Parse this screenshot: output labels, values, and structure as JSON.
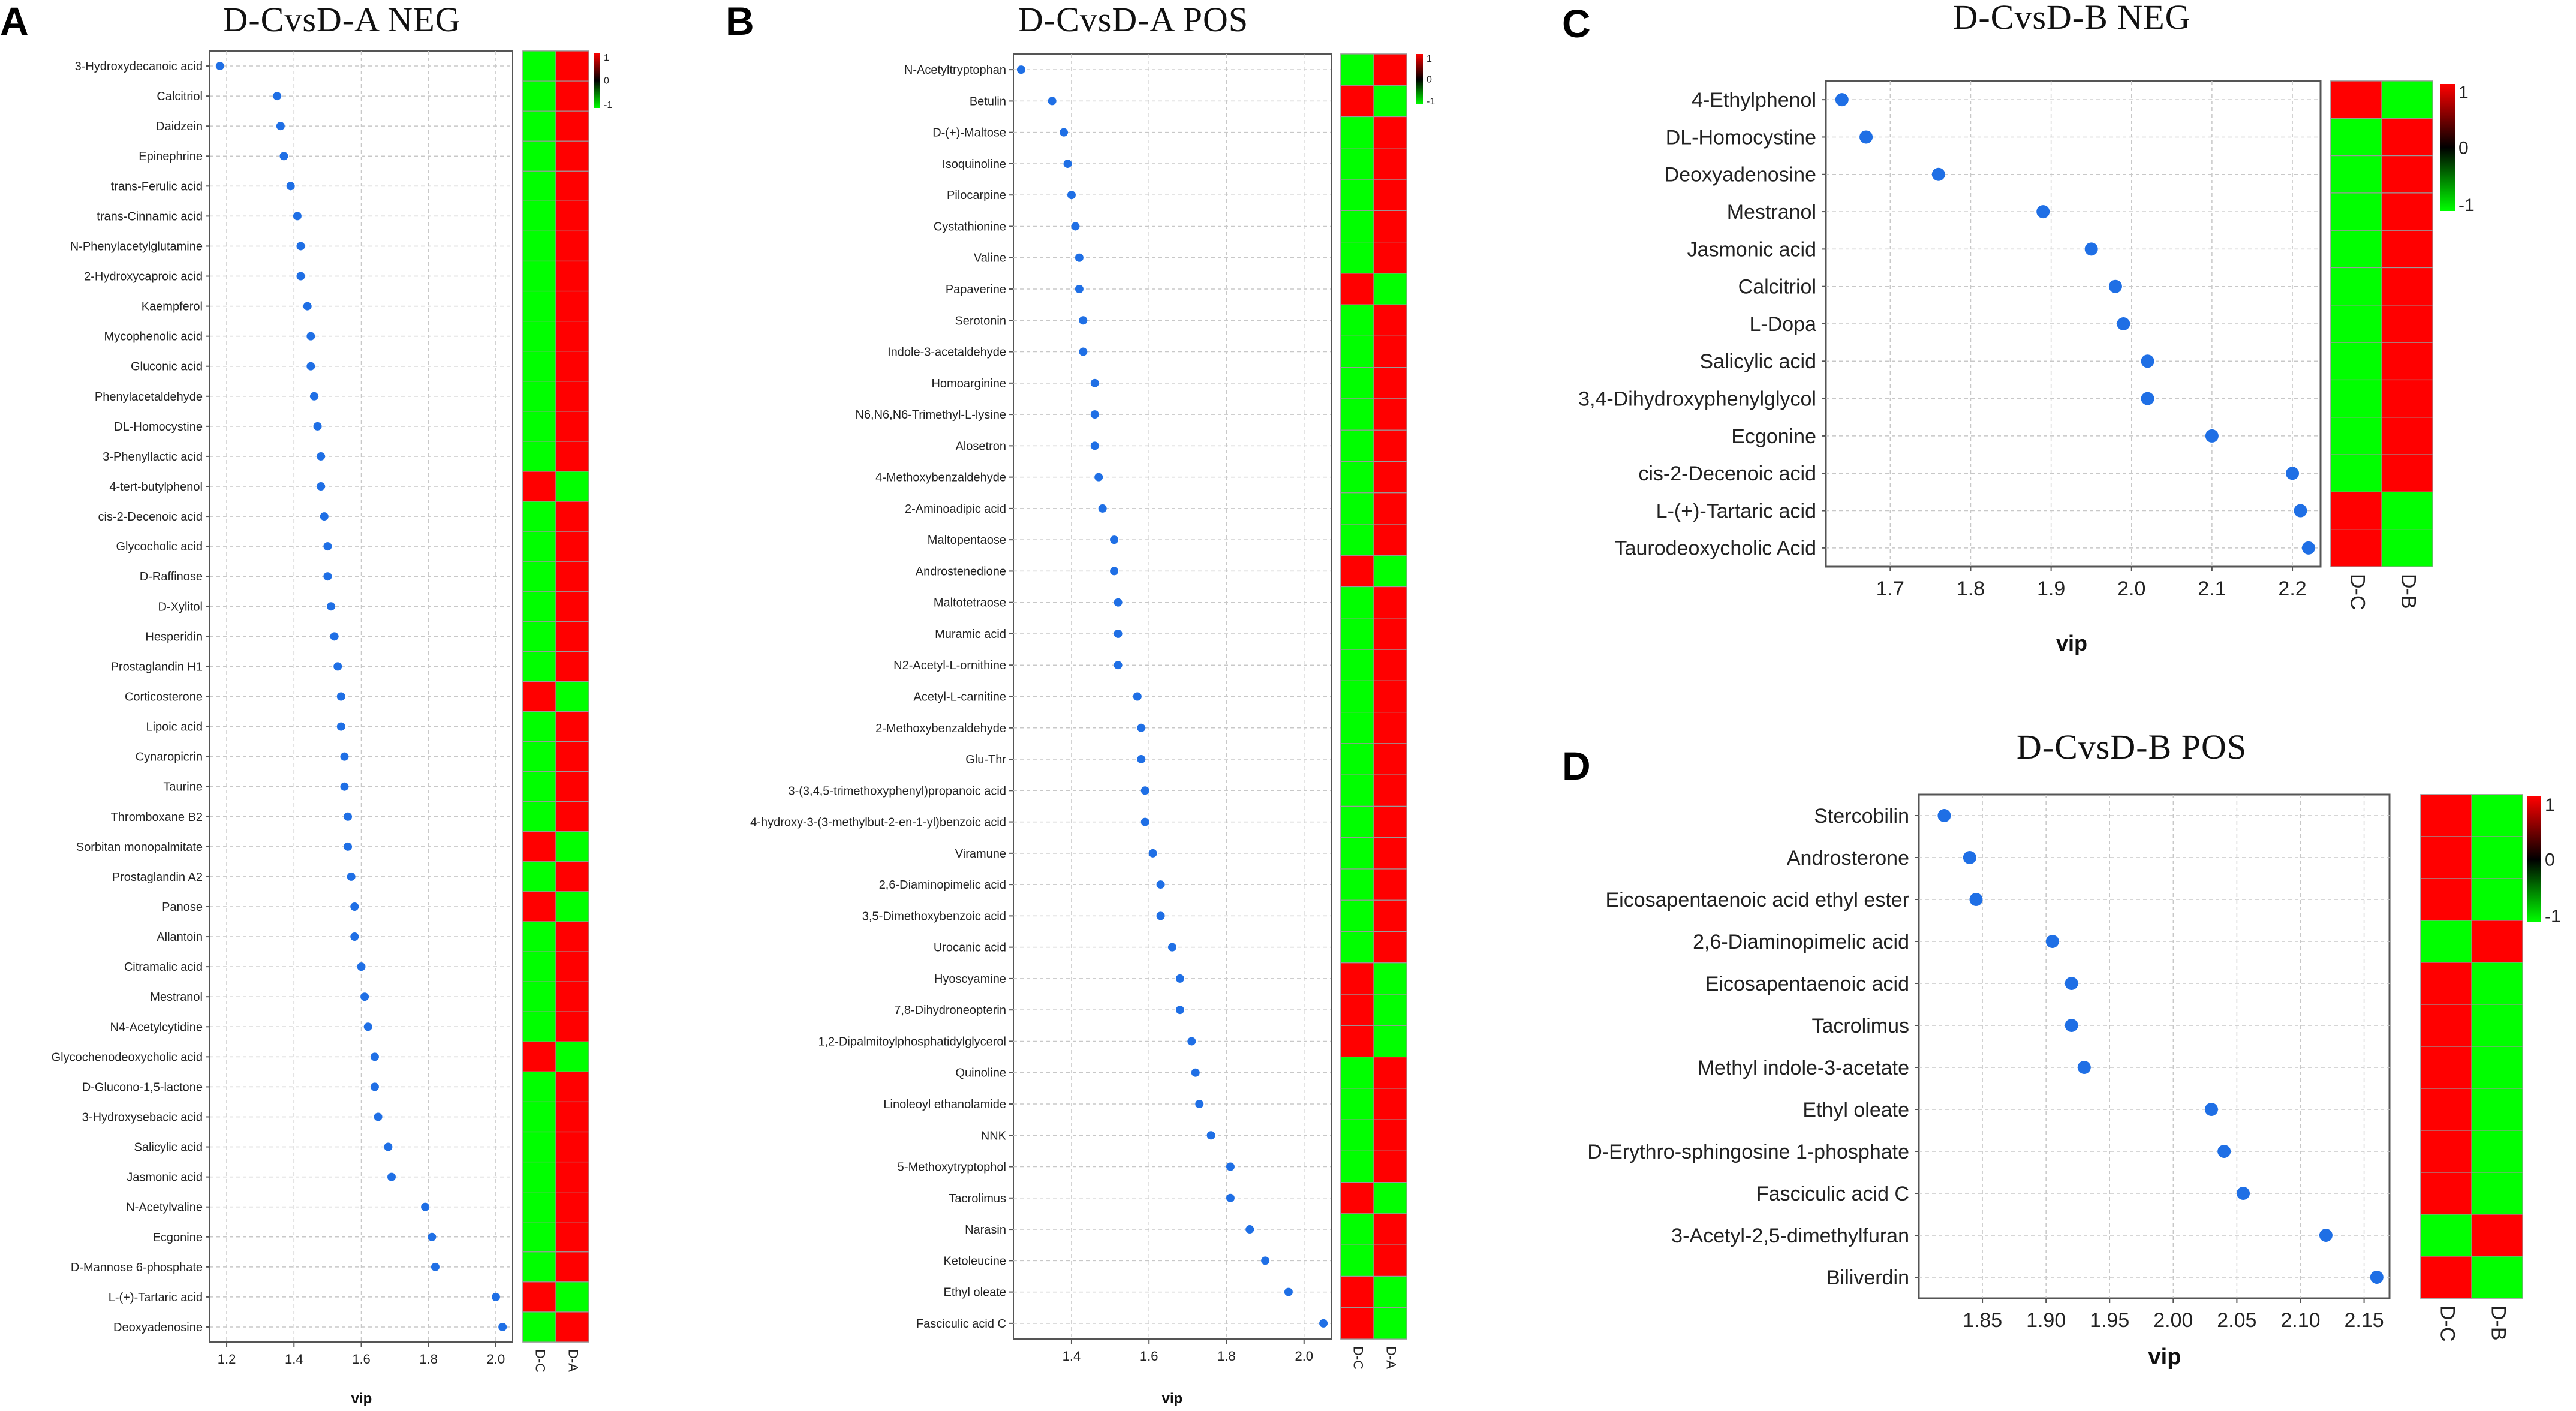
{
  "chart_data": [
    {
      "panel": "A",
      "type": "scatter",
      "title": "D-CvsD-A   NEG",
      "xlabel": "vip",
      "x_ticks": [
        1.2,
        1.4,
        1.6,
        1.8,
        2.0
      ],
      "x_tick_labels": [
        "1.2",
        "1.4",
        "1.6",
        "1.8",
        "2.0"
      ],
      "xlim": [
        1.15,
        2.05
      ],
      "grid": true,
      "categories": [
        "3-Hydroxydecanoic acid",
        "Calcitriol",
        "Daidzein",
        "Epinephrine",
        "trans-Ferulic acid",
        "trans-Cinnamic acid",
        "N-Phenylacetylglutamine",
        "2-Hydroxycaproic acid",
        "Kaempferol",
        "Mycophenolic acid",
        "Gluconic acid",
        "Phenylacetaldehyde",
        "DL-Homocystine",
        "3-Phenyllactic acid",
        "4-tert-butylphenol",
        "cis-2-Decenoic acid",
        "Glycocholic acid",
        "D-Raffinose",
        "D-Xylitol",
        "Hesperidin",
        "Prostaglandin H1",
        "Corticosterone",
        "Lipoic acid",
        "Cynaropicrin",
        "Taurine",
        "Thromboxane B2",
        "Sorbitan monopalmitate",
        "Prostaglandin A2",
        "Panose",
        "Allantoin",
        "Citramalic acid",
        "Mestranol",
        "N4-Acetylcytidine",
        "Glycochenodeoxycholic acid",
        "D-Glucono-1,5-lactone",
        "3-Hydroxysebacic acid",
        "Salicylic acid",
        "Jasmonic acid",
        "N-Acetylvaline",
        "Ecgonine",
        "D-Mannose 6-phosphate",
        "L-(+)-Tartaric acid",
        "Deoxyadenosine"
      ],
      "values": [
        1.18,
        1.35,
        1.36,
        1.37,
        1.39,
        1.41,
        1.42,
        1.42,
        1.44,
        1.45,
        1.45,
        1.46,
        1.47,
        1.48,
        1.48,
        1.49,
        1.5,
        1.5,
        1.51,
        1.52,
        1.53,
        1.54,
        1.54,
        1.55,
        1.55,
        1.56,
        1.56,
        1.57,
        1.58,
        1.58,
        1.6,
        1.61,
        1.62,
        1.64,
        1.64,
        1.65,
        1.68,
        1.69,
        1.79,
        1.81,
        1.82,
        2.0,
        2.02
      ],
      "heatmap_columns": [
        "D-C",
        "D-A"
      ],
      "heatmap": [
        [
          -1,
          1
        ],
        [
          -1,
          1
        ],
        [
          -1,
          1
        ],
        [
          -1,
          1
        ],
        [
          -1,
          1
        ],
        [
          -1,
          1
        ],
        [
          -1,
          1
        ],
        [
          -1,
          1
        ],
        [
          -1,
          1
        ],
        [
          -1,
          1
        ],
        [
          -1,
          1
        ],
        [
          -1,
          1
        ],
        [
          -1,
          1
        ],
        [
          -1,
          1
        ],
        [
          1,
          -1
        ],
        [
          -1,
          1
        ],
        [
          -1,
          1
        ],
        [
          -1,
          1
        ],
        [
          -1,
          1
        ],
        [
          -1,
          1
        ],
        [
          -1,
          1
        ],
        [
          1,
          -1
        ],
        [
          -1,
          1
        ],
        [
          -1,
          1
        ],
        [
          -1,
          1
        ],
        [
          -1,
          1
        ],
        [
          1,
          -1
        ],
        [
          -1,
          1
        ],
        [
          1,
          -1
        ],
        [
          -1,
          1
        ],
        [
          -1,
          1
        ],
        [
          -1,
          1
        ],
        [
          -1,
          1
        ],
        [
          1,
          -1
        ],
        [
          -1,
          1
        ],
        [
          -1,
          1
        ],
        [
          -1,
          1
        ],
        [
          -1,
          1
        ],
        [
          -1,
          1
        ],
        [
          -1,
          1
        ],
        [
          -1,
          1
        ],
        [
          1,
          -1
        ],
        [
          -1,
          1
        ]
      ],
      "color_scale": {
        "max_label": "1",
        "mid_label": "0",
        "min_label": "-1",
        "high_color": "#ff0000",
        "mid_color": "#000000",
        "low_color": "#00ff00"
      }
    },
    {
      "panel": "B",
      "type": "scatter",
      "title": "D-CvsD-A   POS",
      "xlabel": "vip",
      "x_ticks": [
        1.4,
        1.6,
        1.8,
        2.0
      ],
      "x_tick_labels": [
        "1.4",
        "1.6",
        "1.8",
        "2.0"
      ],
      "xlim": [
        1.25,
        2.07
      ],
      "grid": true,
      "categories": [
        "N-Acetyltryptophan",
        "Betulin",
        "D-(+)-Maltose",
        "Isoquinoline",
        "Pilocarpine",
        "Cystathionine",
        "Valine",
        "Papaverine",
        "Serotonin",
        "Indole-3-acetaldehyde",
        "Homoarginine",
        "N6,N6,N6-Trimethyl-L-lysine",
        "Alosetron",
        "4-Methoxybenzaldehyde",
        "2-Aminoadipic acid",
        "Maltopentaose",
        "Androstenedione",
        "Maltotetraose",
        "Muramic acid",
        "N2-Acetyl-L-ornithine",
        "Acetyl-L-carnitine",
        "2-Methoxybenzaldehyde",
        "Glu-Thr",
        "3-(3,4,5-trimethoxyphenyl)propanoic acid",
        "4-hydroxy-3-(3-methylbut-2-en-1-yl)benzoic acid",
        "Viramune",
        "2,6-Diaminopimelic acid",
        "3,5-Dimethoxybenzoic acid",
        "Urocanic acid",
        "Hyoscyamine",
        "7,8-Dihydroneopterin",
        "1,2-Dipalmitoylphosphatidylglycerol",
        "Quinoline",
        "Linoleoyl ethanolamide",
        "NNK",
        "5-Methoxytryptophol",
        "Tacrolimus",
        "Narasin",
        "Ketoleucine",
        "Ethyl oleate",
        "Fasciculic acid C"
      ],
      "values": [
        1.27,
        1.35,
        1.38,
        1.39,
        1.4,
        1.41,
        1.42,
        1.42,
        1.43,
        1.43,
        1.46,
        1.46,
        1.46,
        1.47,
        1.48,
        1.51,
        1.51,
        1.52,
        1.52,
        1.52,
        1.57,
        1.58,
        1.58,
        1.59,
        1.59,
        1.61,
        1.63,
        1.63,
        1.66,
        1.68,
        1.68,
        1.71,
        1.72,
        1.73,
        1.76,
        1.81,
        1.81,
        1.86,
        1.9,
        1.96,
        2.05
      ],
      "heatmap_columns": [
        "D-C",
        "D-A"
      ],
      "heatmap": [
        [
          -1,
          1
        ],
        [
          1,
          -1
        ],
        [
          -1,
          1
        ],
        [
          -1,
          1
        ],
        [
          -1,
          1
        ],
        [
          -1,
          1
        ],
        [
          -1,
          1
        ],
        [
          1,
          -1
        ],
        [
          -1,
          1
        ],
        [
          -1,
          1
        ],
        [
          -1,
          1
        ],
        [
          -1,
          1
        ],
        [
          -1,
          1
        ],
        [
          -1,
          1
        ],
        [
          -1,
          1
        ],
        [
          -1,
          1
        ],
        [
          1,
          -1
        ],
        [
          -1,
          1
        ],
        [
          -1,
          1
        ],
        [
          -1,
          1
        ],
        [
          -1,
          1
        ],
        [
          -1,
          1
        ],
        [
          -1,
          1
        ],
        [
          -1,
          1
        ],
        [
          -1,
          1
        ],
        [
          -1,
          1
        ],
        [
          -1,
          1
        ],
        [
          -1,
          1
        ],
        [
          -1,
          1
        ],
        [
          1,
          -1
        ],
        [
          1,
          -1
        ],
        [
          1,
          -1
        ],
        [
          -1,
          1
        ],
        [
          -1,
          1
        ],
        [
          -1,
          1
        ],
        [
          -1,
          1
        ],
        [
          1,
          -1
        ],
        [
          -1,
          1
        ],
        [
          -1,
          1
        ],
        [
          1,
          -1
        ],
        [
          1,
          -1
        ]
      ],
      "color_scale": {
        "max_label": "1",
        "mid_label": "0",
        "min_label": "-1",
        "high_color": "#ff0000",
        "mid_color": "#000000",
        "low_color": "#00ff00"
      }
    },
    {
      "panel": "C",
      "type": "scatter",
      "title": "D-CvsD-B   NEG",
      "xlabel": "vip",
      "x_ticks": [
        1.7,
        1.8,
        1.9,
        2.0,
        2.1,
        2.2
      ],
      "x_tick_labels": [
        "1.7",
        "1.8",
        "1.9",
        "2.0",
        "2.1",
        "2.2"
      ],
      "xlim": [
        1.62,
        2.235
      ],
      "grid": true,
      "categories": [
        "4-Ethylphenol",
        "DL-Homocystine",
        "Deoxyadenosine",
        "Mestranol",
        "Jasmonic acid",
        "Calcitriol",
        "L-Dopa",
        "Salicylic acid",
        "3,4-Dihydroxyphenylglycol",
        "Ecgonine",
        "cis-2-Decenoic acid",
        "L-(+)-Tartaric acid",
        "Taurodeoxycholic Acid"
      ],
      "values": [
        1.64,
        1.67,
        1.76,
        1.89,
        1.95,
        1.98,
        1.99,
        2.02,
        2.02,
        2.1,
        2.2,
        2.21,
        2.22
      ],
      "heatmap_columns": [
        "D-C",
        "D-B"
      ],
      "heatmap": [
        [
          1,
          -1
        ],
        [
          -1,
          1
        ],
        [
          -1,
          1
        ],
        [
          -1,
          1
        ],
        [
          -1,
          1
        ],
        [
          -1,
          1
        ],
        [
          -1,
          1
        ],
        [
          -1,
          1
        ],
        [
          -1,
          1
        ],
        [
          -1,
          1
        ],
        [
          -1,
          1
        ],
        [
          1,
          -1
        ],
        [
          1,
          -1
        ]
      ],
      "color_scale": {
        "max_label": "1",
        "mid_label": "0",
        "min_label": "-1",
        "high_color": "#ff0000",
        "mid_color": "#000000",
        "low_color": "#00ff00"
      }
    },
    {
      "panel": "D",
      "type": "scatter",
      "title": "D-CvsD-B   POS",
      "xlabel": "vip",
      "x_ticks": [
        1.85,
        1.9,
        1.95,
        2.0,
        2.05,
        2.1,
        2.15
      ],
      "x_tick_labels": [
        "1.85",
        "1.90",
        "1.95",
        "2.00",
        "2.05",
        "2.10",
        "2.15"
      ],
      "xlim": [
        1.8,
        2.17
      ],
      "grid": true,
      "categories": [
        "Stercobilin",
        "Androsterone",
        "Eicosapentaenoic acid ethyl ester",
        "2,6-Diaminopimelic acid",
        "Eicosapentaenoic acid",
        "Tacrolimus",
        "Methyl indole-3-acetate",
        "Ethyl oleate",
        "D-Erythro-sphingosine 1-phosphate",
        "Fasciculic acid C",
        "3-Acetyl-2,5-dimethylfuran",
        "Biliverdin"
      ],
      "values": [
        1.82,
        1.84,
        1.845,
        1.905,
        1.92,
        1.92,
        1.93,
        2.03,
        2.04,
        2.055,
        2.12,
        2.16
      ],
      "heatmap_columns": [
        "D-C",
        "D-B"
      ],
      "heatmap": [
        [
          1,
          -1
        ],
        [
          1,
          -1
        ],
        [
          1,
          -1
        ],
        [
          -1,
          1
        ],
        [
          1,
          -1
        ],
        [
          1,
          -1
        ],
        [
          1,
          -1
        ],
        [
          1,
          -1
        ],
        [
          1,
          -1
        ],
        [
          1,
          -1
        ],
        [
          -1,
          1
        ],
        [
          1,
          -1
        ]
      ],
      "color_scale": {
        "max_label": "1",
        "mid_label": "0",
        "min_label": "-1",
        "high_color": "#ff0000",
        "mid_color": "#000000",
        "low_color": "#00ff00"
      }
    }
  ],
  "colors": {
    "point": "#1f6fe5",
    "grid": "#c8c8c8",
    "frame": "#555555",
    "heat_high": "#ff0000",
    "heat_low": "#00ff00"
  }
}
